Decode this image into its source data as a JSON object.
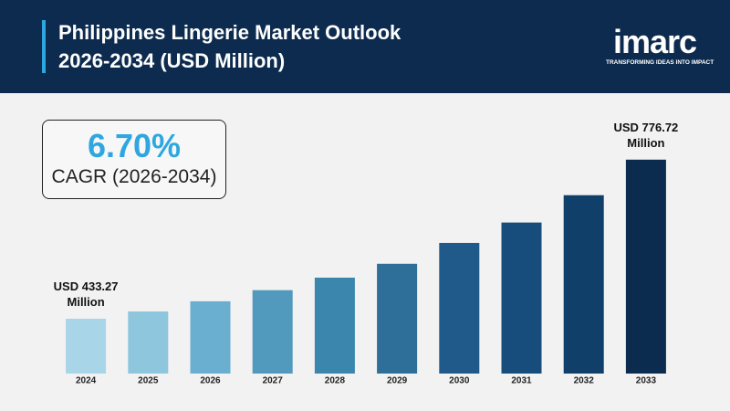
{
  "header": {
    "logo": "imarc",
    "tagline": "TRANSFORMING IDEAS INTO IMPACT"
  },
  "cagr": {
    "value": "6.70%",
    "label": "CAGR (2026-2034)"
  },
  "chart_data": {
    "type": "bar",
    "title": "Philippines Lingerie Market Outlook 2026-2034 (USD Million)",
    "categories": [
      "2024",
      "2025",
      "2026",
      "2027",
      "2028",
      "2029",
      "2030",
      "2031",
      "2032",
      "2033"
    ],
    "values": [
      433.27,
      449,
      471,
      495,
      522,
      552,
      597,
      641,
      700,
      776.72
    ],
    "value_labels": [
      "USD 433.27 Million",
      null,
      null,
      null,
      null,
      null,
      null,
      null,
      null,
      "USD 776.72 Million"
    ],
    "colors": [
      "#a8d5e8",
      "#8ec6de",
      "#6aaed0",
      "#5199bd",
      "#3a86ad",
      "#2e6f9a",
      "#1f5a8a",
      "#174d7c",
      "#103f6a",
      "#0c2c4f"
    ],
    "ylim": [
      315,
      800
    ]
  }
}
